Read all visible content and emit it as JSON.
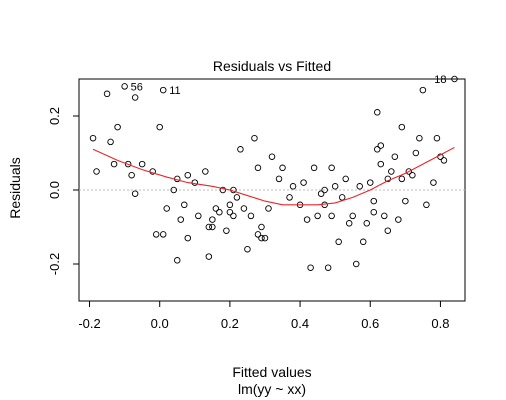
{
  "chart_data": {
    "type": "scatter",
    "title": "Residuals vs Fitted",
    "xlabel": "Fitted values",
    "subtitle": "lm(yy ~ xx)",
    "ylabel": "Residuals",
    "xlim": [
      -0.23,
      0.87
    ],
    "ylim": [
      -0.3,
      0.3
    ],
    "xticks": [
      -0.2,
      0.0,
      0.2,
      0.4,
      0.6,
      0.8
    ],
    "yticks": [
      -0.2,
      0.0,
      0.2
    ],
    "grid": false,
    "reference_line": {
      "y": 0,
      "style": "dotted",
      "color": "#bbbbbb"
    },
    "smoother": {
      "color": "#e8262b",
      "points": [
        [
          -0.19,
          0.11
        ],
        [
          -0.12,
          0.08
        ],
        [
          -0.05,
          0.055
        ],
        [
          0.02,
          0.035
        ],
        [
          0.08,
          0.02
        ],
        [
          0.15,
          0.01
        ],
        [
          0.2,
          0.0
        ],
        [
          0.25,
          -0.015
        ],
        [
          0.3,
          -0.03
        ],
        [
          0.35,
          -0.04
        ],
        [
          0.4,
          -0.04
        ],
        [
          0.45,
          -0.04
        ],
        [
          0.5,
          -0.035
        ],
        [
          0.55,
          -0.02
        ],
        [
          0.6,
          0.0
        ],
        [
          0.65,
          0.025
        ],
        [
          0.7,
          0.045
        ],
        [
          0.75,
          0.07
        ],
        [
          0.8,
          0.095
        ],
        [
          0.84,
          0.115
        ]
      ]
    },
    "point_color": "#000000",
    "points": [
      [
        -0.19,
        0.14
      ],
      [
        -0.18,
        0.05
      ],
      [
        -0.15,
        0.26
      ],
      [
        -0.14,
        0.13
      ],
      [
        -0.13,
        0.07
      ],
      [
        -0.12,
        0.17
      ],
      [
        -0.1,
        0.28
      ],
      [
        -0.09,
        0.07
      ],
      [
        -0.08,
        0.04
      ],
      [
        -0.07,
        0.25
      ],
      [
        -0.07,
        -0.01
      ],
      [
        -0.05,
        0.07
      ],
      [
        -0.02,
        0.05
      ],
      [
        -0.01,
        -0.12
      ],
      [
        0.0,
        0.17
      ],
      [
        0.01,
        0.27
      ],
      [
        0.01,
        -0.12
      ],
      [
        0.02,
        -0.05
      ],
      [
        0.04,
        0.0
      ],
      [
        0.05,
        -0.19
      ],
      [
        0.05,
        0.03
      ],
      [
        0.06,
        -0.08
      ],
      [
        0.07,
        -0.04
      ],
      [
        0.08,
        0.04
      ],
      [
        0.08,
        -0.13
      ],
      [
        0.1,
        0.02
      ],
      [
        0.11,
        -0.07
      ],
      [
        0.13,
        0.05
      ],
      [
        0.14,
        -0.18
      ],
      [
        0.14,
        -0.1
      ],
      [
        0.15,
        -0.08
      ],
      [
        0.15,
        -0.1
      ],
      [
        0.16,
        -0.05
      ],
      [
        0.17,
        -0.06
      ],
      [
        0.18,
        0.0
      ],
      [
        0.19,
        -0.11
      ],
      [
        0.2,
        -0.04
      ],
      [
        0.2,
        -0.06
      ],
      [
        0.21,
        -0.07
      ],
      [
        0.21,
        0.0
      ],
      [
        0.22,
        -0.02
      ],
      [
        0.23,
        0.11
      ],
      [
        0.24,
        -0.05
      ],
      [
        0.25,
        -0.16
      ],
      [
        0.26,
        -0.07
      ],
      [
        0.27,
        0.14
      ],
      [
        0.28,
        0.06
      ],
      [
        0.28,
        -0.12
      ],
      [
        0.29,
        -0.1
      ],
      [
        0.29,
        -0.13
      ],
      [
        0.3,
        -0.13
      ],
      [
        0.31,
        -0.05
      ],
      [
        0.32,
        0.09
      ],
      [
        0.34,
        0.03
      ],
      [
        0.35,
        0.06
      ],
      [
        0.37,
        -0.02
      ],
      [
        0.38,
        0.01
      ],
      [
        0.4,
        -0.04
      ],
      [
        0.41,
        0.02
      ],
      [
        0.42,
        -0.08
      ],
      [
        0.43,
        -0.21
      ],
      [
        0.44,
        0.06
      ],
      [
        0.45,
        -0.07
      ],
      [
        0.46,
        -0.01
      ],
      [
        0.47,
        0.0
      ],
      [
        0.47,
        -0.04
      ],
      [
        0.48,
        -0.21
      ],
      [
        0.49,
        0.06
      ],
      [
        0.49,
        -0.07
      ],
      [
        0.5,
        0.01
      ],
      [
        0.51,
        -0.14
      ],
      [
        0.52,
        -0.02
      ],
      [
        0.53,
        0.03
      ],
      [
        0.54,
        -0.09
      ],
      [
        0.55,
        -0.07
      ],
      [
        0.56,
        -0.2
      ],
      [
        0.57,
        0.01
      ],
      [
        0.58,
        -0.14
      ],
      [
        0.59,
        -0.09
      ],
      [
        0.6,
        0.02
      ],
      [
        0.61,
        -0.03
      ],
      [
        0.61,
        -0.06
      ],
      [
        0.62,
        0.21
      ],
      [
        0.62,
        0.11
      ],
      [
        0.63,
        0.12
      ],
      [
        0.63,
        0.07
      ],
      [
        0.64,
        -0.07
      ],
      [
        0.65,
        -0.11
      ],
      [
        0.65,
        0.03
      ],
      [
        0.66,
        0.05
      ],
      [
        0.67,
        0.09
      ],
      [
        0.68,
        -0.08
      ],
      [
        0.69,
        0.03
      ],
      [
        0.69,
        0.17
      ],
      [
        0.7,
        -0.03
      ],
      [
        0.71,
        0.05
      ],
      [
        0.72,
        0.04
      ],
      [
        0.73,
        0.1
      ],
      [
        0.74,
        0.14
      ],
      [
        0.75,
        0.27
      ],
      [
        0.76,
        -0.04
      ],
      [
        0.78,
        0.02
      ],
      [
        0.79,
        0.14
      ],
      [
        0.8,
        0.09
      ],
      [
        0.81,
        0.08
      ],
      [
        0.84,
        0.3
      ]
    ],
    "annotations": [
      {
        "label": "56",
        "x": -0.1,
        "y": 0.28
      },
      {
        "label": "11",
        "x": 0.01,
        "y": 0.27
      },
      {
        "label": "18",
        "x": 0.84,
        "y": 0.3
      }
    ]
  }
}
